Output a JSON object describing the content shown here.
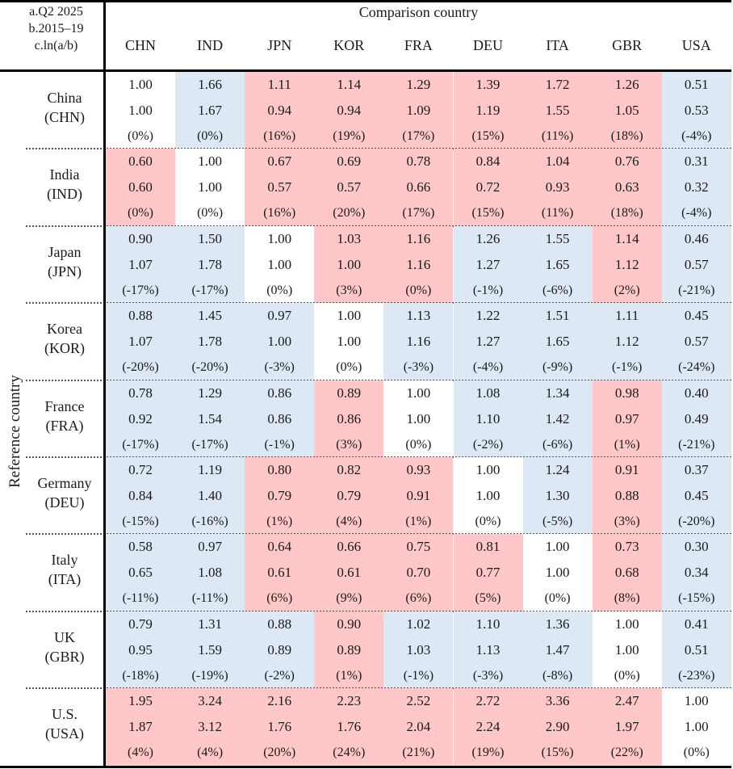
{
  "legend": [
    "a.Q2 2025",
    "b.2015–19",
    "c.ln(a/b)"
  ],
  "comparison_title": "Comparison country",
  "reference_title": "Reference country",
  "columns": [
    "CHN",
    "IND",
    "JPN",
    "KOR",
    "FRA",
    "DEU",
    "ITA",
    "GBR",
    "USA"
  ],
  "colors": {
    "pink": "#ffc7c7",
    "blue": "#dce8f4",
    "white": "#ffffff"
  },
  "rows": [
    {
      "name": "China",
      "code": "(CHN)",
      "cells": [
        {
          "a": "1.00",
          "b": "1.00",
          "c": "(0%)",
          "color": "white"
        },
        {
          "a": "1.66",
          "b": "1.67",
          "c": "(0%)",
          "color": "blue"
        },
        {
          "a": "1.11",
          "b": "0.94",
          "c": "(16%)",
          "color": "pink"
        },
        {
          "a": "1.14",
          "b": "0.94",
          "c": "(19%)",
          "color": "pink"
        },
        {
          "a": "1.29",
          "b": "1.09",
          "c": "(17%)",
          "color": "pink"
        },
        {
          "a": "1.39",
          "b": "1.19",
          "c": "(15%)",
          "color": "pink"
        },
        {
          "a": "1.72",
          "b": "1.55",
          "c": "(11%)",
          "color": "pink"
        },
        {
          "a": "1.26",
          "b": "1.05",
          "c": "(18%)",
          "color": "pink"
        },
        {
          "a": "0.51",
          "b": "0.53",
          "c": "(-4%)",
          "color": "blue"
        }
      ]
    },
    {
      "name": "India",
      "code": "(IND)",
      "cells": [
        {
          "a": "0.60",
          "b": "0.60",
          "c": "(0%)",
          "color": "pink"
        },
        {
          "a": "1.00",
          "b": "1.00",
          "c": "(0%)",
          "color": "white"
        },
        {
          "a": "0.67",
          "b": "0.57",
          "c": "(16%)",
          "color": "pink"
        },
        {
          "a": "0.69",
          "b": "0.57",
          "c": "(20%)",
          "color": "pink"
        },
        {
          "a": "0.78",
          "b": "0.66",
          "c": "(17%)",
          "color": "pink"
        },
        {
          "a": "0.84",
          "b": "0.72",
          "c": "(15%)",
          "color": "pink"
        },
        {
          "a": "1.04",
          "b": "0.93",
          "c": "(11%)",
          "color": "pink"
        },
        {
          "a": "0.76",
          "b": "0.63",
          "c": "(18%)",
          "color": "pink"
        },
        {
          "a": "0.31",
          "b": "0.32",
          "c": "(-4%)",
          "color": "blue"
        }
      ]
    },
    {
      "name": "Japan",
      "code": "(JPN)",
      "cells": [
        {
          "a": "0.90",
          "b": "1.07",
          "c": "(-17%)",
          "color": "blue"
        },
        {
          "a": "1.50",
          "b": "1.78",
          "c": "(-17%)",
          "color": "blue"
        },
        {
          "a": "1.00",
          "b": "1.00",
          "c": "(0%)",
          "color": "white"
        },
        {
          "a": "1.03",
          "b": "1.00",
          "c": "(3%)",
          "color": "pink"
        },
        {
          "a": "1.16",
          "b": "1.16",
          "c": "(0%)",
          "color": "pink"
        },
        {
          "a": "1.26",
          "b": "1.27",
          "c": "(-1%)",
          "color": "blue"
        },
        {
          "a": "1.55",
          "b": "1.65",
          "c": "(-6%)",
          "color": "blue"
        },
        {
          "a": "1.14",
          "b": "1.12",
          "c": "(2%)",
          "color": "pink"
        },
        {
          "a": "0.46",
          "b": "0.57",
          "c": "(-21%)",
          "color": "blue"
        }
      ]
    },
    {
      "name": "Korea",
      "code": "(KOR)",
      "cells": [
        {
          "a": "0.88",
          "b": "1.07",
          "c": "(-20%)",
          "color": "blue"
        },
        {
          "a": "1.45",
          "b": "1.78",
          "c": "(-20%)",
          "color": "blue"
        },
        {
          "a": "0.97",
          "b": "1.00",
          "c": "(-3%)",
          "color": "blue"
        },
        {
          "a": "1.00",
          "b": "1.00",
          "c": "(0%)",
          "color": "white"
        },
        {
          "a": "1.13",
          "b": "1.16",
          "c": "(-3%)",
          "color": "blue"
        },
        {
          "a": "1.22",
          "b": "1.27",
          "c": "(-4%)",
          "color": "blue"
        },
        {
          "a": "1.51",
          "b": "1.65",
          "c": "(-9%)",
          "color": "blue"
        },
        {
          "a": "1.11",
          "b": "1.12",
          "c": "(-1%)",
          "color": "blue"
        },
        {
          "a": "0.45",
          "b": "0.57",
          "c": "(-24%)",
          "color": "blue"
        }
      ]
    },
    {
      "name": "France",
      "code": "(FRA)",
      "cells": [
        {
          "a": "0.78",
          "b": "0.92",
          "c": "(-17%)",
          "color": "blue"
        },
        {
          "a": "1.29",
          "b": "1.54",
          "c": "(-17%)",
          "color": "blue"
        },
        {
          "a": "0.86",
          "b": "0.86",
          "c": "(-1%)",
          "color": "blue"
        },
        {
          "a": "0.89",
          "b": "0.86",
          "c": "(3%)",
          "color": "pink"
        },
        {
          "a": "1.00",
          "b": "1.00",
          "c": "(0%)",
          "color": "white"
        },
        {
          "a": "1.08",
          "b": "1.10",
          "c": "(-2%)",
          "color": "blue"
        },
        {
          "a": "1.34",
          "b": "1.42",
          "c": "(-6%)",
          "color": "blue"
        },
        {
          "a": "0.98",
          "b": "0.97",
          "c": "(1%)",
          "color": "pink"
        },
        {
          "a": "0.40",
          "b": "0.49",
          "c": "(-21%)",
          "color": "blue"
        }
      ]
    },
    {
      "name": "Germany",
      "code": "(DEU)",
      "cells": [
        {
          "a": "0.72",
          "b": "0.84",
          "c": "(-15%)",
          "color": "blue"
        },
        {
          "a": "1.19",
          "b": "1.40",
          "c": "(-16%)",
          "color": "blue"
        },
        {
          "a": "0.80",
          "b": "0.79",
          "c": "(1%)",
          "color": "pink"
        },
        {
          "a": "0.82",
          "b": "0.79",
          "c": "(4%)",
          "color": "pink"
        },
        {
          "a": "0.93",
          "b": "0.91",
          "c": "(1%)",
          "color": "pink"
        },
        {
          "a": "1.00",
          "b": "1.00",
          "c": "(0%)",
          "color": "white"
        },
        {
          "a": "1.24",
          "b": "1.30",
          "c": "(-5%)",
          "color": "blue"
        },
        {
          "a": "0.91",
          "b": "0.88",
          "c": "(3%)",
          "color": "pink"
        },
        {
          "a": "0.37",
          "b": "0.45",
          "c": "(-20%)",
          "color": "blue"
        }
      ]
    },
    {
      "name": "Italy",
      "code": "(ITA)",
      "cells": [
        {
          "a": "0.58",
          "b": "0.65",
          "c": "(-11%)",
          "color": "blue"
        },
        {
          "a": "0.97",
          "b": "1.08",
          "c": "(-11%)",
          "color": "blue"
        },
        {
          "a": "0.64",
          "b": "0.61",
          "c": "(6%)",
          "color": "pink"
        },
        {
          "a": "0.66",
          "b": "0.61",
          "c": "(9%)",
          "color": "pink"
        },
        {
          "a": "0.75",
          "b": "0.70",
          "c": "(6%)",
          "color": "pink"
        },
        {
          "a": "0.81",
          "b": "0.77",
          "c": "(5%)",
          "color": "pink"
        },
        {
          "a": "1.00",
          "b": "1.00",
          "c": "(0%)",
          "color": "white"
        },
        {
          "a": "0.73",
          "b": "0.68",
          "c": "(8%)",
          "color": "pink"
        },
        {
          "a": "0.30",
          "b": "0.34",
          "c": "(-15%)",
          "color": "blue"
        }
      ]
    },
    {
      "name": "UK",
      "code": "(GBR)",
      "cells": [
        {
          "a": "0.79",
          "b": "0.95",
          "c": "(-18%)",
          "color": "blue"
        },
        {
          "a": "1.31",
          "b": "1.59",
          "c": "(-19%)",
          "color": "blue"
        },
        {
          "a": "0.88",
          "b": "0.89",
          "c": "(-2%)",
          "color": "blue"
        },
        {
          "a": "0.90",
          "b": "0.89",
          "c": "(1%)",
          "color": "pink"
        },
        {
          "a": "1.02",
          "b": "1.03",
          "c": "(-1%)",
          "color": "blue"
        },
        {
          "a": "1.10",
          "b": "1.13",
          "c": "(-3%)",
          "color": "blue"
        },
        {
          "a": "1.36",
          "b": "1.47",
          "c": "(-8%)",
          "color": "blue"
        },
        {
          "a": "1.00",
          "b": "1.00",
          "c": "(0%)",
          "color": "white"
        },
        {
          "a": "0.41",
          "b": "0.51",
          "c": "(-23%)",
          "color": "blue"
        }
      ]
    },
    {
      "name": "U.S.",
      "code": "(USA)",
      "cells": [
        {
          "a": "1.95",
          "b": "1.87",
          "c": "(4%)",
          "color": "pink"
        },
        {
          "a": "3.24",
          "b": "3.12",
          "c": "(4%)",
          "color": "pink"
        },
        {
          "a": "2.16",
          "b": "1.76",
          "c": "(20%)",
          "color": "pink"
        },
        {
          "a": "2.23",
          "b": "1.76",
          "c": "(24%)",
          "color": "pink"
        },
        {
          "a": "2.52",
          "b": "2.04",
          "c": "(21%)",
          "color": "pink"
        },
        {
          "a": "2.72",
          "b": "2.24",
          "c": "(19%)",
          "color": "pink"
        },
        {
          "a": "3.36",
          "b": "2.90",
          "c": "(15%)",
          "color": "pink"
        },
        {
          "a": "2.47",
          "b": "1.97",
          "c": "(22%)",
          "color": "pink"
        },
        {
          "a": "1.00",
          "b": "1.00",
          "c": "(0%)",
          "color": "white"
        }
      ]
    }
  ]
}
